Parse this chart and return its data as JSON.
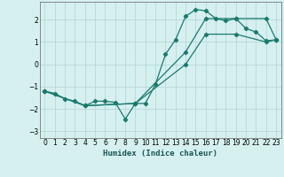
{
  "title": "",
  "xlabel": "Humidex (Indice chaleur)",
  "background_color": "#d6f0f0",
  "grid_color": "#b8d8d8",
  "line_color": "#1a7a6e",
  "xlim": [
    -0.5,
    23.5
  ],
  "ylim": [
    -3.3,
    2.8
  ],
  "xticks": [
    0,
    1,
    2,
    3,
    4,
    5,
    6,
    7,
    8,
    9,
    10,
    11,
    12,
    13,
    14,
    15,
    16,
    17,
    18,
    19,
    20,
    21,
    22,
    23
  ],
  "yticks": [
    -3,
    -2,
    -1,
    0,
    1,
    2
  ],
  "series1_x": [
    0,
    1,
    2,
    3,
    4,
    5,
    6,
    7,
    8,
    9,
    10,
    11,
    12,
    13,
    14,
    15,
    16,
    17,
    18,
    19,
    20,
    21,
    22,
    23
  ],
  "series1_y": [
    -1.2,
    -1.3,
    -1.55,
    -1.65,
    -1.85,
    -1.65,
    -1.65,
    -1.7,
    -2.45,
    -1.75,
    -1.75,
    -0.9,
    0.45,
    1.1,
    2.15,
    2.45,
    2.4,
    2.05,
    1.95,
    2.05,
    1.6,
    1.45,
    1.05,
    1.1
  ],
  "series2_x": [
    0,
    4,
    9,
    14,
    16,
    19,
    22,
    23
  ],
  "series2_y": [
    -1.2,
    -1.85,
    -1.75,
    0.55,
    2.05,
    2.05,
    2.05,
    1.1
  ],
  "series3_x": [
    0,
    4,
    9,
    14,
    16,
    19,
    22,
    23
  ],
  "series3_y": [
    -1.2,
    -1.85,
    -1.75,
    0.0,
    1.35,
    1.35,
    1.0,
    1.1
  ]
}
